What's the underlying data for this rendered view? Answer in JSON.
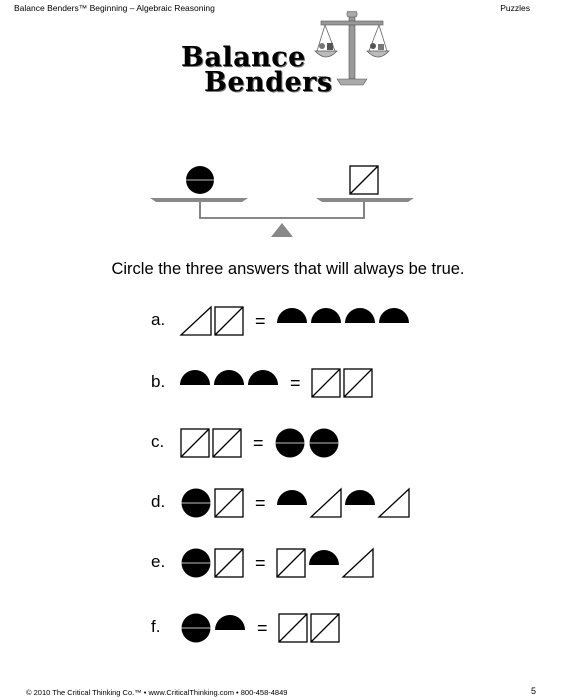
{
  "header": {
    "title": "Balance Benders™ Beginning – Algebraic Reasoning",
    "section": "Puzzles"
  },
  "logo": {
    "line1": "Balance",
    "line2": "Benders",
    "tm": "TM"
  },
  "puzzle": {
    "left_pan": "circle",
    "right_pan": "square"
  },
  "instruction": "Circle the three answers that will always be true.",
  "options": [
    {
      "label": "a.",
      "left": [
        "triangle",
        "square"
      ],
      "right": [
        "half-circle",
        "half-circle",
        "half-circle",
        "half-circle"
      ]
    },
    {
      "label": "b.",
      "left": [
        "half-circle",
        "half-circle",
        "half-circle"
      ],
      "right": [
        "square",
        "square"
      ]
    },
    {
      "label": "c.",
      "left": [
        "square",
        "square"
      ],
      "right": [
        "circle",
        "circle"
      ]
    },
    {
      "label": "d.",
      "left": [
        "circle",
        "square"
      ],
      "right": [
        "half-circle",
        "triangle",
        "half-circle",
        "triangle"
      ]
    },
    {
      "label": "e.",
      "left": [
        "circle",
        "square"
      ],
      "right": [
        "square",
        "half-circle",
        "triangle"
      ]
    },
    {
      "label": "f.",
      "left": [
        "circle",
        "half-circle"
      ],
      "right": [
        "square",
        "square"
      ]
    }
  ],
  "equals_sign": "=",
  "footer": {
    "copyright": "© 2010 The Critical Thinking Co.™ • www.CriticalThinking.com • 800-458-4849",
    "page": "5"
  }
}
